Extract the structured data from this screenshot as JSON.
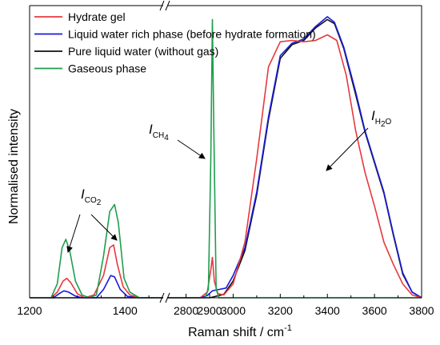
{
  "chart_data": {
    "type": "line",
    "xlabel": "Raman shift  /  cm",
    "xlabel_sup": "-1",
    "ylabel": "Normalised intensity",
    "broken_x_axis": true,
    "x_segments": [
      {
        "xlim": [
          1200,
          1480
        ],
        "ticks": [
          "1200",
          "1400"
        ]
      },
      {
        "xlim": [
          2720,
          3800
        ],
        "ticks": [
          "2800",
          "2900",
          "3000",
          "3200",
          "3400",
          "3600",
          "3800"
        ]
      }
    ],
    "ylim": [
      0,
      1.05
    ],
    "grid": false,
    "legend_position": "top-left",
    "series": [
      {
        "name": "Hydrate gel",
        "color": "#e8383d",
        "points": [
          [
            1200,
            0.0
          ],
          [
            1245,
            0.0
          ],
          [
            1258,
            0.02
          ],
          [
            1270,
            0.06
          ],
          [
            1278,
            0.07
          ],
          [
            1286,
            0.055
          ],
          [
            1300,
            0.015
          ],
          [
            1315,
            0.0
          ],
          [
            1335,
            0.01
          ],
          [
            1355,
            0.08
          ],
          [
            1368,
            0.18
          ],
          [
            1376,
            0.19
          ],
          [
            1384,
            0.12
          ],
          [
            1396,
            0.04
          ],
          [
            1410,
            0.01
          ],
          [
            1430,
            0.0
          ],
          [
            1480,
            0.0
          ],
          [
            2720,
            0.0
          ],
          [
            2860,
            0.0
          ],
          [
            2890,
            0.02
          ],
          [
            2905,
            0.1
          ],
          [
            2912,
            0.145
          ],
          [
            2920,
            0.06
          ],
          [
            2935,
            0.015
          ],
          [
            2960,
            0.01
          ],
          [
            3000,
            0.05
          ],
          [
            3050,
            0.2
          ],
          [
            3100,
            0.5
          ],
          [
            3150,
            0.83
          ],
          [
            3200,
            0.92
          ],
          [
            3250,
            0.925
          ],
          [
            3300,
            0.92
          ],
          [
            3350,
            0.925
          ],
          [
            3400,
            0.945
          ],
          [
            3440,
            0.925
          ],
          [
            3480,
            0.8
          ],
          [
            3520,
            0.6
          ],
          [
            3560,
            0.45
          ],
          [
            3600,
            0.33
          ],
          [
            3640,
            0.2
          ],
          [
            3680,
            0.12
          ],
          [
            3720,
            0.05
          ],
          [
            3760,
            0.01
          ],
          [
            3800,
            0.0
          ]
        ]
      },
      {
        "name": "Liquid water rich phase (before hydrate formation)",
        "color": "#1a1adb",
        "points": [
          [
            1200,
            0.0
          ],
          [
            1250,
            0.0
          ],
          [
            1262,
            0.015
          ],
          [
            1272,
            0.025
          ],
          [
            1282,
            0.02
          ],
          [
            1296,
            0.006
          ],
          [
            1310,
            0.0
          ],
          [
            1340,
            0.0
          ],
          [
            1355,
            0.03
          ],
          [
            1370,
            0.08
          ],
          [
            1378,
            0.075
          ],
          [
            1390,
            0.03
          ],
          [
            1405,
            0.005
          ],
          [
            1430,
            0.0
          ],
          [
            1480,
            0.0
          ],
          [
            2720,
            0.0
          ],
          [
            2860,
            0.0
          ],
          [
            2890,
            0.008
          ],
          [
            2912,
            0.025
          ],
          [
            2940,
            0.03
          ],
          [
            2970,
            0.035
          ],
          [
            3000,
            0.08
          ],
          [
            3050,
            0.18
          ],
          [
            3100,
            0.38
          ],
          [
            3150,
            0.65
          ],
          [
            3200,
            0.87
          ],
          [
            3250,
            0.915
          ],
          [
            3300,
            0.93
          ],
          [
            3350,
            0.975
          ],
          [
            3400,
            1.01
          ],
          [
            3430,
            0.99
          ],
          [
            3470,
            0.9
          ],
          [
            3520,
            0.74
          ],
          [
            3560,
            0.6
          ],
          [
            3600,
            0.49
          ],
          [
            3640,
            0.38
          ],
          [
            3680,
            0.23
          ],
          [
            3720,
            0.09
          ],
          [
            3760,
            0.02
          ],
          [
            3800,
            0.0
          ]
        ]
      },
      {
        "name": "Pure liquid water (without gas)",
        "color": "#111111",
        "points": [
          [
            1200,
            0.0
          ],
          [
            1480,
            0.0
          ],
          [
            2720,
            0.0
          ],
          [
            2900,
            0.0
          ],
          [
            2960,
            0.012
          ],
          [
            3000,
            0.06
          ],
          [
            3050,
            0.17
          ],
          [
            3100,
            0.37
          ],
          [
            3150,
            0.64
          ],
          [
            3200,
            0.86
          ],
          [
            3250,
            0.91
          ],
          [
            3300,
            0.925
          ],
          [
            3350,
            0.97
          ],
          [
            3400,
            1.0
          ],
          [
            3430,
            0.985
          ],
          [
            3470,
            0.895
          ],
          [
            3520,
            0.73
          ],
          [
            3560,
            0.595
          ],
          [
            3600,
            0.485
          ],
          [
            3640,
            0.375
          ],
          [
            3680,
            0.225
          ],
          [
            3720,
            0.085
          ],
          [
            3760,
            0.02
          ],
          [
            3800,
            0.0
          ]
        ]
      },
      {
        "name": "Gaseous phase",
        "color": "#1f9e4e",
        "points": [
          [
            1200,
            0.0
          ],
          [
            1245,
            0.0
          ],
          [
            1258,
            0.05
          ],
          [
            1268,
            0.18
          ],
          [
            1276,
            0.21
          ],
          [
            1284,
            0.17
          ],
          [
            1296,
            0.06
          ],
          [
            1310,
            0.01
          ],
          [
            1325,
            0.0
          ],
          [
            1340,
            0.01
          ],
          [
            1355,
            0.15
          ],
          [
            1368,
            0.31
          ],
          [
            1378,
            0.335
          ],
          [
            1386,
            0.27
          ],
          [
            1398,
            0.07
          ],
          [
            1410,
            0.02
          ],
          [
            1430,
            0.0
          ],
          [
            1480,
            0.0
          ],
          [
            2720,
            0.0
          ],
          [
            2880,
            0.0
          ],
          [
            2895,
            0.03
          ],
          [
            2905,
            0.5
          ],
          [
            2912,
            1.0
          ],
          [
            2918,
            0.6
          ],
          [
            2928,
            0.03
          ],
          [
            2940,
            0.0
          ],
          [
            3800,
            0.0
          ]
        ]
      }
    ],
    "annotations": [
      {
        "symbol": "I",
        "subscript": "CO",
        "subscript2": "2"
      },
      {
        "symbol": "I",
        "subscript": "CH",
        "subscript2": "4"
      },
      {
        "symbol": "I",
        "subscript": "H",
        "subscript2": "2",
        "subscript3": "O"
      }
    ]
  }
}
